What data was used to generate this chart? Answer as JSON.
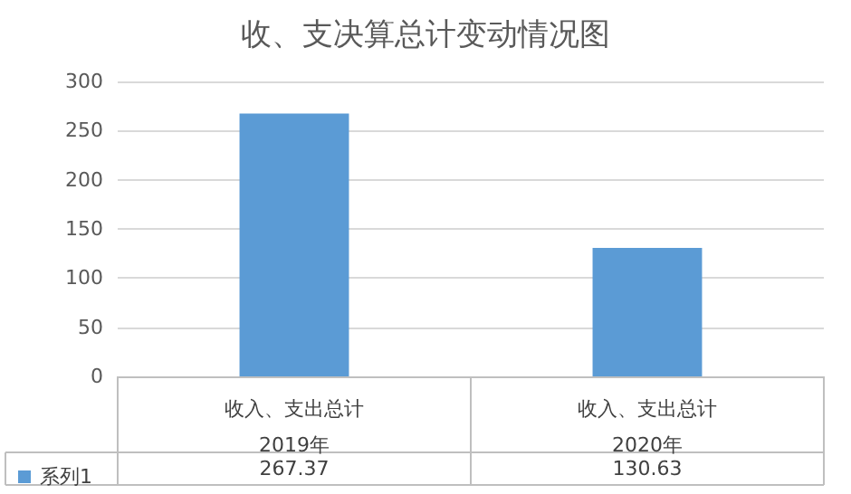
{
  "chart_data": {
    "type": "bar",
    "title": "收、支决算总计变动情况图",
    "categories": [
      "收入、支出总计\n2019年",
      "收入、支出总计\n2020年"
    ],
    "series": [
      {
        "name": "系列1",
        "color": "#5b9bd5",
        "values": [
          267.37,
          130.63
        ]
      }
    ],
    "ylim": [
      0,
      300
    ],
    "yticks": [
      0,
      50,
      100,
      150,
      200,
      250,
      300
    ],
    "grid": "y",
    "legend": "bottom left",
    "data_labels": true
  }
}
